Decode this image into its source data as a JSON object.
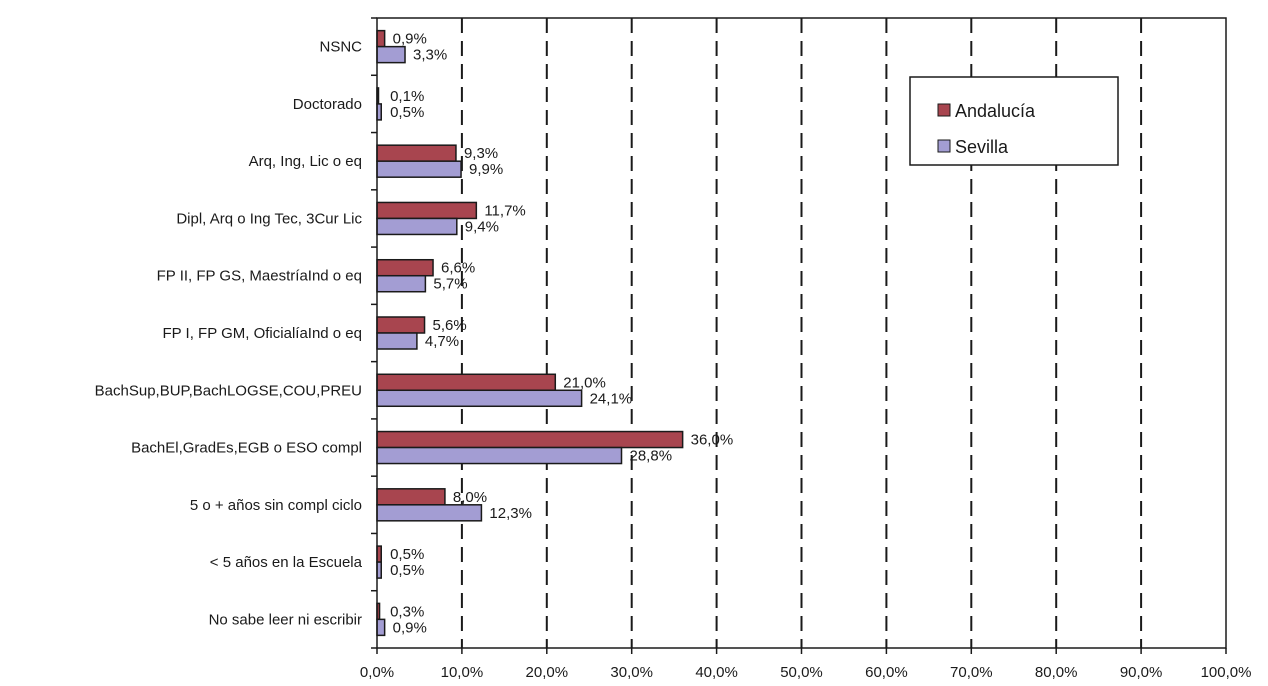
{
  "chart_data": {
    "type": "bar",
    "orientation": "horizontal",
    "categories": [
      "NSNC",
      "Doctorado",
      "Arq, Ing, Lic o eq",
      "Dipl, Arq o Ing Tec, 3Cur Lic",
      "FP II, FP GS, MaestríaInd o eq",
      "FP I, FP GM, OficialíaInd o eq",
      "BachSup,BUP,BachLOGSE,COU,PREU",
      "BachEl,GradEs,EGB o ESO compl",
      "5 o + años sin compl ciclo",
      "< 5 años en la Escuela",
      "No sabe leer ni escribir"
    ],
    "series": [
      {
        "name": "Andalucía",
        "color": "#a8454f",
        "values": [
          0.9,
          0.1,
          9.3,
          11.7,
          6.6,
          5.6,
          21.0,
          36.0,
          8.0,
          0.5,
          0.3
        ],
        "labels": [
          "0,9%",
          "0,1%",
          "9,3%",
          "11,7%",
          "6,6%",
          "5,6%",
          "21,0%",
          "36,0%",
          "8,0%",
          "0,5%",
          "0,3%"
        ]
      },
      {
        "name": "Sevilla",
        "color": "#a39dd3",
        "values": [
          3.3,
          0.5,
          9.9,
          9.4,
          5.7,
          4.7,
          24.1,
          28.8,
          12.3,
          0.5,
          0.9
        ],
        "labels": [
          "3,3%",
          "0,5%",
          "9,9%",
          "9,4%",
          "5,7%",
          "4,7%",
          "24,1%",
          "28,8%",
          "12,3%",
          "0,5%",
          "0,9%"
        ]
      }
    ],
    "xlim": [
      0,
      100
    ],
    "x_ticks": [
      0,
      10,
      20,
      30,
      40,
      50,
      60,
      70,
      80,
      90,
      100
    ],
    "x_tick_labels": [
      "0,0%",
      "10,0%",
      "20,0%",
      "30,0%",
      "40,0%",
      "50,0%",
      "60,0%",
      "70,0%",
      "80,0%",
      "90,0%",
      "100,0%"
    ],
    "grid": "vertical dashed",
    "legend": "top-right",
    "title": "",
    "xlabel": "",
    "ylabel": ""
  }
}
